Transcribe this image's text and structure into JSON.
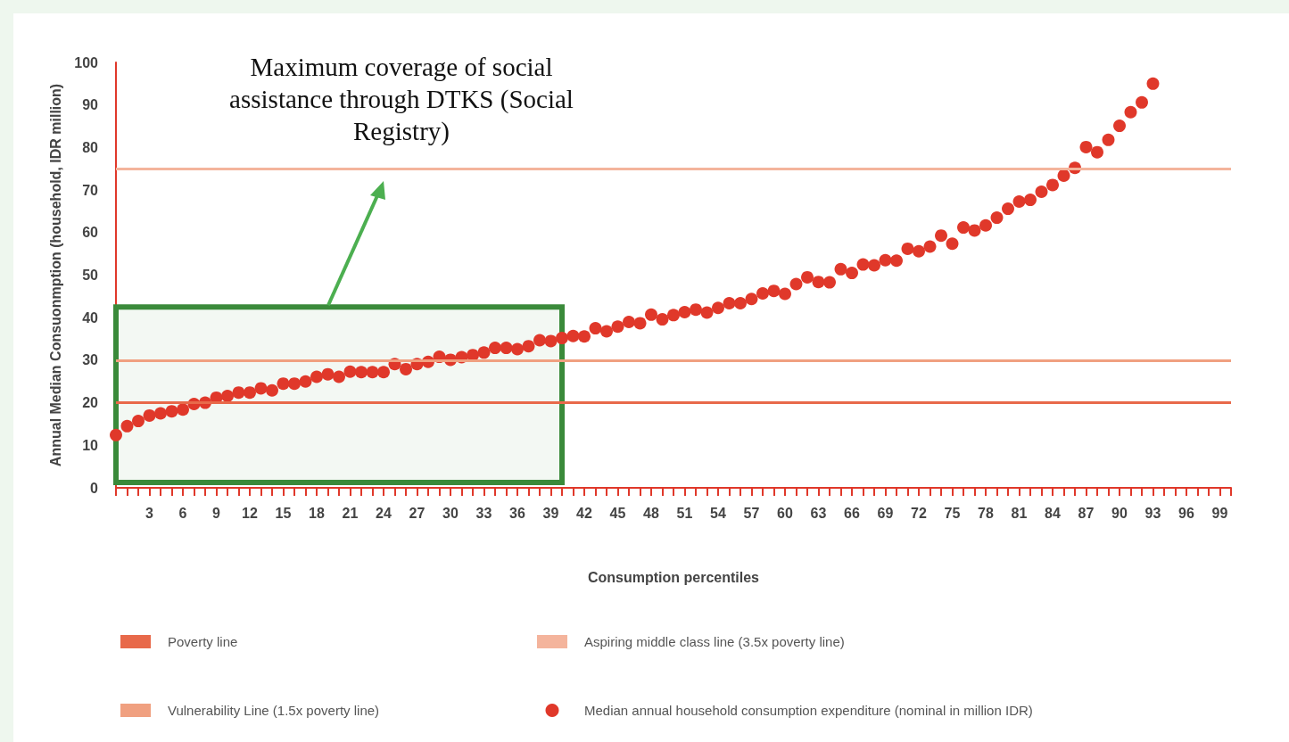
{
  "chart_data": {
    "type": "scatter",
    "xlabel": "Consumption percentiles",
    "ylabel": "Annual Median Consuonmption (household, IDR million)",
    "xlim": [
      0,
      100
    ],
    "xticks": [
      3,
      6,
      9,
      12,
      15,
      18,
      21,
      24,
      27,
      30,
      33,
      36,
      39,
      42,
      45,
      48,
      51,
      54,
      57,
      60,
      63,
      66,
      69,
      72,
      75,
      78,
      81,
      84,
      87,
      90,
      93,
      96,
      99
    ],
    "ylim": [
      0,
      100
    ],
    "yticks": [
      0,
      10,
      20,
      30,
      40,
      50,
      60,
      70,
      80,
      90,
      100
    ],
    "x": [
      0,
      1,
      2,
      3,
      4,
      5,
      6,
      7,
      8,
      9,
      10,
      11,
      12,
      13,
      14,
      15,
      16,
      17,
      18,
      19,
      20,
      21,
      22,
      23,
      24,
      25,
      26,
      27,
      28,
      29,
      30,
      31,
      32,
      33,
      34,
      35,
      36,
      37,
      38,
      39,
      40,
      41,
      42,
      43,
      44,
      45,
      46,
      47,
      48,
      49,
      50,
      51,
      52,
      53,
      54,
      55,
      56,
      57,
      58,
      59,
      60,
      61,
      62,
      63,
      64,
      65,
      66,
      67,
      68,
      69,
      70,
      71,
      72,
      73,
      74,
      75,
      76,
      77,
      78,
      79,
      80,
      81,
      82,
      83,
      84,
      85,
      86,
      87,
      88,
      89,
      90,
      91,
      92,
      93
    ],
    "series": [
      {
        "name": "Median annual household consumption expenditure (nominal in million IDR)",
        "color": "#e0382a",
        "values": [
          12.4,
          14.5,
          15.7,
          17,
          17.5,
          18,
          18.4,
          19.7,
          20,
          21.2,
          21.6,
          22.4,
          22.4,
          23.4,
          22.9,
          24.5,
          24.5,
          25,
          26.1,
          26.7,
          26.1,
          27.3,
          27.2,
          27.2,
          27.2,
          29.1,
          27.9,
          29.1,
          29.6,
          30.8,
          30.1,
          30.7,
          31.2,
          31.8,
          32.9,
          32.9,
          32.6,
          33.3,
          34.7,
          34.5,
          35.2,
          35.7,
          35.6,
          37.5,
          36.8,
          37.9,
          39,
          38.7,
          40.7,
          39.6,
          40.6,
          41.3,
          41.9,
          41.2,
          42.3,
          43.4,
          43.4,
          44.4,
          45.7,
          46.3,
          45.6,
          47.9,
          49.5,
          48.4,
          48.3,
          51.4,
          50.5,
          52.5,
          52.3,
          53.5,
          53.4,
          56.2,
          55.6,
          56.7,
          59.3,
          57.4,
          61.2,
          60.5,
          61.7,
          63.5,
          65.6,
          67.3,
          67.7,
          69.6,
          71.2,
          73.4,
          75.2,
          80.1,
          78.9,
          81.8,
          85.1,
          88.3,
          90.6,
          95
        ]
      }
    ],
    "marker": "circle",
    "grid": false,
    "legend": "bottom",
    "ref_lines": [
      {
        "axis": "y",
        "value": 20,
        "label": "Poverty line",
        "color": "#e8694a"
      },
      {
        "axis": "y",
        "value": 75,
        "label": "Aspiring middle class line (3.5x poverty line)",
        "color": "#f4b49c"
      },
      {
        "axis": "y",
        "value": 30,
        "label": "Vulnerability Line (1.5x poverty line)",
        "color": "#f0a080"
      }
    ],
    "bands": [
      {
        "axis": "x",
        "from": 0,
        "to": 40,
        "color": "#3a8a3a"
      }
    ],
    "annotations": [
      "Maximum coverage of social assistance through DTKS (Social Registry)"
    ]
  }
}
